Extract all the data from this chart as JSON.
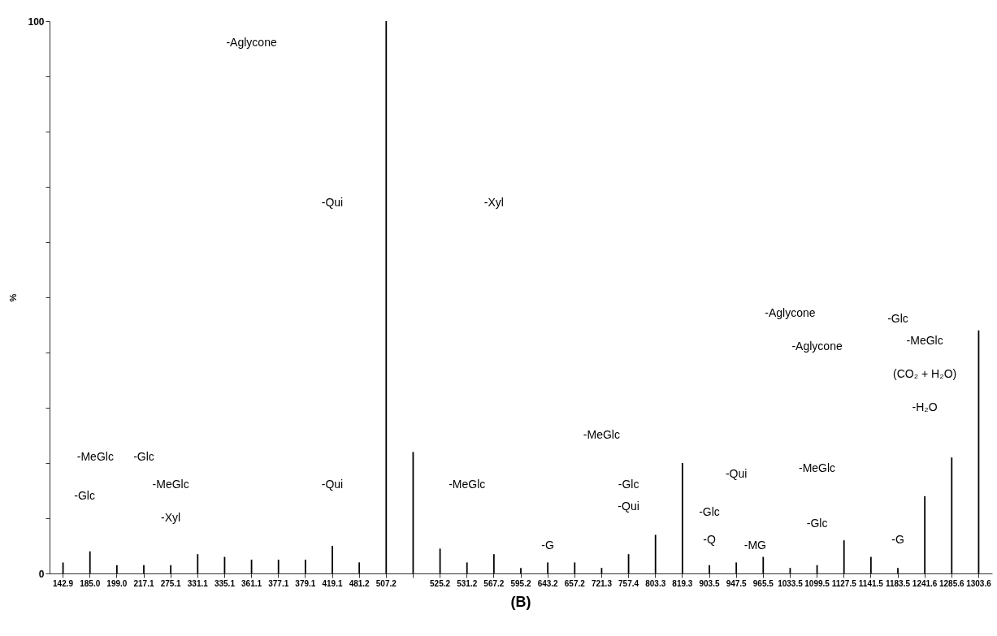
{
  "chart_data": {
    "type": "bar",
    "ylabel": "%",
    "color": "#000000",
    "categories": [
      "142.9",
      "185.0",
      "199.0",
      "217.1",
      "275.1",
      "331.1",
      "335.1",
      "361.1",
      "377.1",
      "379.1",
      "419.1",
      "481.2",
      "507.2",
      null,
      "525.2",
      "531.2",
      "567.2",
      "595.2",
      "643.2",
      "657.2",
      "721.3",
      "757.4",
      "803.3",
      "819.3",
      "903.5",
      "947.5",
      "965.5",
      "1033.5",
      "1099.5",
      "1127.5",
      "1141.5",
      "1183.5",
      "1241.6",
      "1285.6",
      "1303.6"
    ],
    "values": [
      2,
      4,
      1.5,
      1.5,
      1.5,
      3.5,
      3,
      2.5,
      2.5,
      2.5,
      5,
      2,
      100,
      22,
      4.5,
      2,
      3.5,
      1,
      2,
      2,
      1,
      3.5,
      7,
      20,
      1.5,
      2,
      3,
      1,
      1.5,
      6,
      3,
      1,
      14,
      21,
      44
    ],
    "ylim": [
      0,
      100
    ],
    "yticks": [
      0,
      {
        "value": 10,
        "label": null
      },
      {
        "value": 20,
        "label": null
      },
      {
        "value": 30,
        "label": null
      },
      {
        "value": 40,
        "label": null
      },
      {
        "value": 50,
        "label": null
      },
      {
        "value": 60,
        "label": null
      },
      {
        "value": 70,
        "label": null
      },
      {
        "value": 80,
        "label": null
      },
      {
        "value": 90,
        "label": null
      },
      100
    ],
    "grid": false,
    "annotations": [
      "-Aglycone",
      "-Qui",
      "-Xyl",
      "-MeGlc",
      "-Glc",
      "-MeGlc",
      "-Glc",
      "-Xyl",
      "-Qui",
      "-MeGlc",
      "-MeGlc",
      "-Glc",
      "-Qui",
      "-Qui",
      "-MeGlc",
      "-Glc",
      "-Glc",
      "-Aglycone",
      "-Aglycone",
      "-Glc",
      "-MeGlc",
      "(CO₂ + H₂O)",
      "-H₂O",
      "-G",
      "-Q",
      "-MG",
      "-G",
      "(B)"
    ]
  }
}
